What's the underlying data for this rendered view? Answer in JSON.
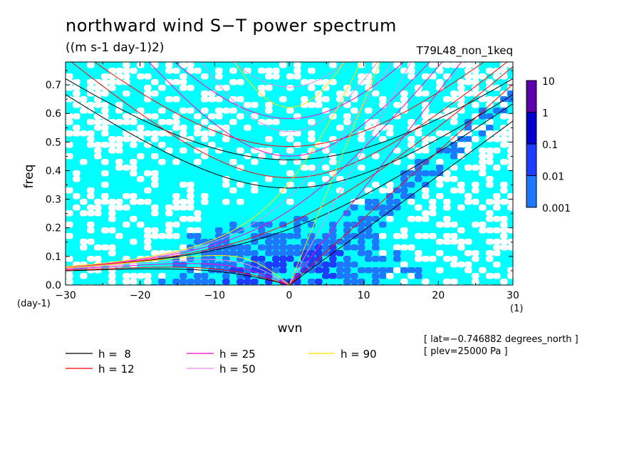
{
  "chart_data": {
    "type": "heatmap",
    "title": "northward wind S−T power spectrum",
    "subtitle": "((m s-1 day-1)2)",
    "run_label": "T79L48_non_1keq",
    "xlabel": "wvn",
    "ylabel": "freq",
    "x_unit": "(1)",
    "y_unit": "(day-1)",
    "xlim": [
      -30,
      30
    ],
    "ylim": [
      0,
      0.78
    ],
    "xticks": [
      "−30",
      "−20",
      "−10",
      "0",
      "10",
      "20",
      "30"
    ],
    "yticks": [
      "0.0",
      "0.1",
      "0.2",
      "0.3",
      "0.4",
      "0.5",
      "0.6",
      "0.7"
    ],
    "colorbar": {
      "levels": [
        "0.001",
        "0.01",
        "0.1",
        "1",
        "10"
      ],
      "colors": [
        "#00ffff",
        "#1e78ff",
        "#1e3cff",
        "#0000cd",
        "#5a00aa"
      ]
    },
    "background_color": "#00ffff",
    "curves": [
      {
        "label": "h =  8",
        "h": 8,
        "color": "#000000"
      },
      {
        "label": "h = 12",
        "h": 12,
        "color": "#ff0000"
      },
      {
        "label": "h = 25",
        "h": 25,
        "color": "#ff00c8"
      },
      {
        "label": "h = 50",
        "h": 50,
        "color": "#e68ce6"
      },
      {
        "label": "h = 90",
        "h": 90,
        "color": "#ffe600"
      }
    ],
    "annotations": [
      "[ lat=−0.746882 degrees_north ]",
      "[ plev=25000 Pa ]"
    ],
    "grid": false
  }
}
